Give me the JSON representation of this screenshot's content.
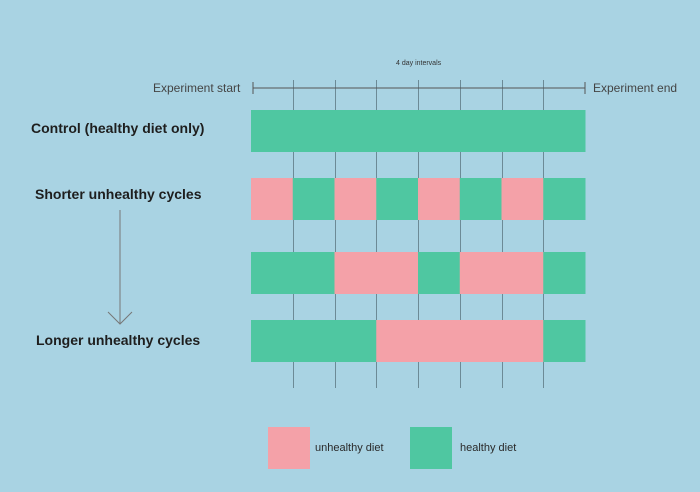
{
  "header": {
    "interval_label": "4 day intervals",
    "start_label": "Experiment start",
    "end_label": "Experiment end"
  },
  "rows": [
    {
      "label": "Control (healthy diet only)",
      "segments": [
        "healthy"
      ],
      "widths": [
        8
      ]
    },
    {
      "label": "Shorter unhealthy cycles",
      "segments": [
        "unhealthy",
        "healthy",
        "unhealthy",
        "healthy",
        "unhealthy",
        "healthy",
        "unhealthy",
        "healthy"
      ],
      "widths": [
        1,
        1,
        1,
        1,
        1,
        1,
        1,
        1
      ]
    },
    {
      "label": "",
      "segments": [
        "healthy",
        "unhealthy",
        "healthy",
        "unhealthy",
        "healthy"
      ],
      "widths": [
        2,
        2,
        1,
        2,
        1
      ]
    },
    {
      "label": "Longer unhealthy cycles",
      "segments": [
        "healthy",
        "unhealthy",
        "healthy"
      ],
      "widths": [
        3,
        4,
        1
      ]
    }
  ],
  "legend": {
    "unhealthy_label": "unhealthy diet",
    "healthy_label": "healthy diet"
  },
  "colors": {
    "healthy": "#4fc7a1",
    "unhealthy": "#f4a1a8",
    "background": "#a9d3e3"
  }
}
